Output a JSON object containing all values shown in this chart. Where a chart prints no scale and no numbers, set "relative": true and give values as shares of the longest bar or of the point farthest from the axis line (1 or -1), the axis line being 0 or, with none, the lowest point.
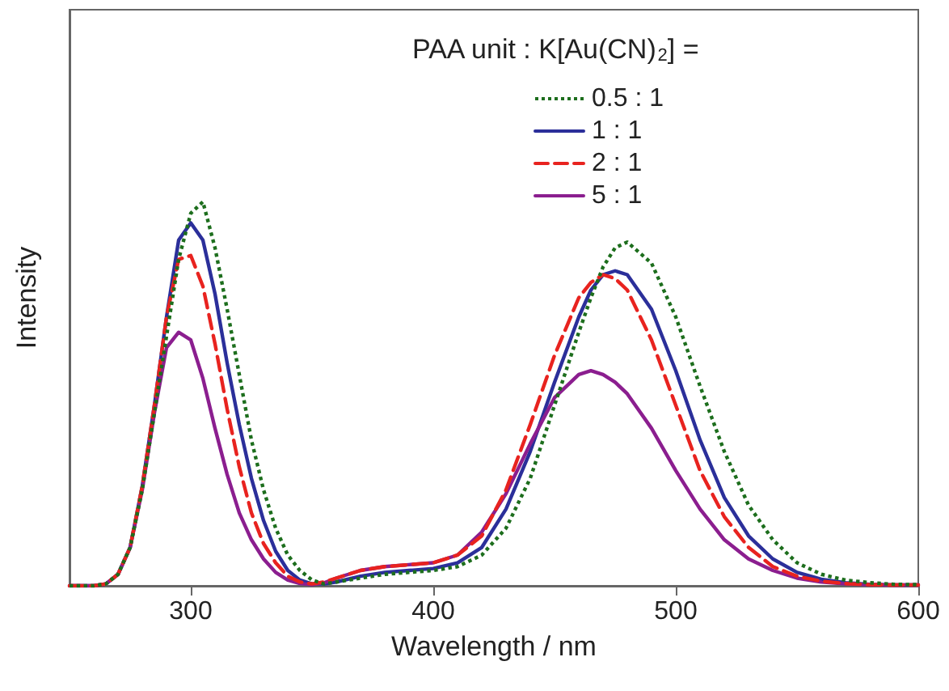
{
  "chart_data": {
    "type": "line",
    "xlabel": "Wavelength / nm",
    "ylabel": "Intensity",
    "legend_title": "PAA unit : K[Au(CN)$_{2}$] =",
    "legend": "top",
    "relative": true,
    "marker": "none",
    "grid": false,
    "xlim": [
      250,
      600
    ],
    "xticks": [
      300,
      400,
      500,
      600
    ],
    "x": [
      250,
      260,
      265,
      270,
      275,
      280,
      285,
      290,
      295,
      300,
      305,
      310,
      315,
      320,
      325,
      330,
      335,
      340,
      345,
      350,
      355,
      360,
      370,
      380,
      390,
      400,
      410,
      420,
      430,
      440,
      450,
      460,
      465,
      470,
      475,
      480,
      490,
      500,
      510,
      520,
      530,
      540,
      550,
      560,
      570,
      580,
      590,
      600
    ],
    "series": [
      {
        "name": "0.5 : 1",
        "color": "#1d6e1d",
        "line_style": "dotted",
        "values": [
          0,
          0,
          0.005,
          0.03,
          0.1,
          0.25,
          0.45,
          0.65,
          0.85,
          0.97,
          1,
          0.88,
          0.72,
          0.55,
          0.38,
          0.25,
          0.15,
          0.08,
          0.04,
          0.015,
          0.005,
          0.01,
          0.02,
          0.03,
          0.035,
          0.04,
          0.05,
          0.08,
          0.15,
          0.28,
          0.47,
          0.66,
          0.75,
          0.83,
          0.88,
          0.895,
          0.84,
          0.7,
          0.52,
          0.35,
          0.21,
          0.12,
          0.06,
          0.03,
          0.015,
          0.008,
          0.004,
          0.003
        ]
      },
      {
        "name": "1 : 1",
        "color": "#2b2f9a",
        "line_style": "solid",
        "values": [
          0,
          0,
          0.005,
          0.03,
          0.1,
          0.26,
          0.47,
          0.7,
          0.9,
          0.945,
          0.9,
          0.76,
          0.58,
          0.42,
          0.28,
          0.17,
          0.09,
          0.04,
          0.015,
          0.005,
          0.005,
          0.01,
          0.025,
          0.035,
          0.04,
          0.045,
          0.06,
          0.1,
          0.2,
          0.35,
          0.53,
          0.7,
          0.77,
          0.81,
          0.82,
          0.81,
          0.72,
          0.56,
          0.38,
          0.23,
          0.13,
          0.07,
          0.035,
          0.017,
          0.008,
          0.004,
          0.002,
          0.002
        ]
      },
      {
        "name": "2 : 1",
        "color": "#e8231f",
        "line_style": "dashed",
        "values": [
          0,
          0,
          0.005,
          0.03,
          0.1,
          0.26,
          0.47,
          0.7,
          0.85,
          0.86,
          0.78,
          0.63,
          0.46,
          0.31,
          0.19,
          0.11,
          0.06,
          0.025,
          0.01,
          0.005,
          0.01,
          0.02,
          0.04,
          0.05,
          0.055,
          0.06,
          0.08,
          0.13,
          0.25,
          0.42,
          0.6,
          0.75,
          0.79,
          0.81,
          0.8,
          0.77,
          0.64,
          0.47,
          0.3,
          0.18,
          0.1,
          0.05,
          0.025,
          0.012,
          0.006,
          0.003,
          0.002,
          0.002
        ]
      },
      {
        "name": "5 : 1",
        "color": "#8b1e8f",
        "line_style": "solid",
        "values": [
          0,
          0,
          0.005,
          0.03,
          0.1,
          0.25,
          0.45,
          0.62,
          0.66,
          0.64,
          0.54,
          0.41,
          0.29,
          0.19,
          0.12,
          0.07,
          0.035,
          0.015,
          0.006,
          0.003,
          0.008,
          0.02,
          0.04,
          0.05,
          0.055,
          0.06,
          0.08,
          0.14,
          0.24,
          0.37,
          0.49,
          0.55,
          0.56,
          0.55,
          0.53,
          0.5,
          0.41,
          0.3,
          0.2,
          0.12,
          0.07,
          0.04,
          0.02,
          0.01,
          0.005,
          0.003,
          0.002,
          0.002
        ]
      }
    ]
  }
}
